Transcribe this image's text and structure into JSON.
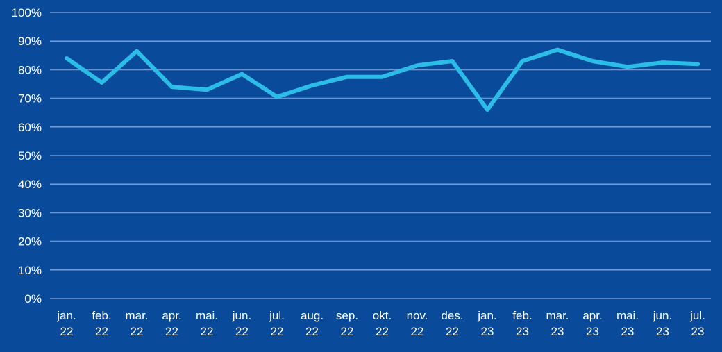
{
  "chart_data": {
    "type": "line",
    "categories": [
      [
        "jan.",
        "22"
      ],
      [
        "feb.",
        "22"
      ],
      [
        "mar.",
        "22"
      ],
      [
        "apr.",
        "22"
      ],
      [
        "mai.",
        "22"
      ],
      [
        "jun.",
        "22"
      ],
      [
        "jul.",
        "22"
      ],
      [
        "aug.",
        "22"
      ],
      [
        "sep.",
        "22"
      ],
      [
        "okt.",
        "22"
      ],
      [
        "nov.",
        "22"
      ],
      [
        "des.",
        "22"
      ],
      [
        "jan.",
        "23"
      ],
      [
        "feb.",
        "23"
      ],
      [
        "mar.",
        "23"
      ],
      [
        "apr.",
        "23"
      ],
      [
        "mai.",
        "23"
      ],
      [
        "jun.",
        "23"
      ],
      [
        "jul.",
        "23"
      ]
    ],
    "series": [
      {
        "values": [
          84,
          75.5,
          86.5,
          74,
          73,
          78.5,
          70.5,
          74.5,
          77.5,
          77.5,
          81.5,
          83,
          66,
          83,
          87,
          83,
          81,
          82.5,
          82
        ],
        "color": "#2bbde8"
      }
    ],
    "y_ticks": [
      "0%",
      "10%",
      "20%",
      "30%",
      "40%",
      "50%",
      "60%",
      "70%",
      "80%",
      "90%",
      "100%"
    ],
    "ylim": [
      0,
      100
    ],
    "grid": true,
    "legend": "none",
    "colors": {
      "background": "#0a4a9b",
      "grid": "#6d95cf",
      "text": "#ffffff"
    }
  }
}
